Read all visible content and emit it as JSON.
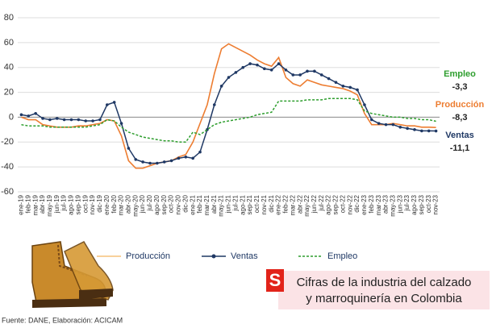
{
  "chart_data": {
    "type": "line",
    "categories": [
      "ene-19",
      "feb-19",
      "mar-19",
      "abr-19",
      "may-19",
      "jun-19",
      "jul-19",
      "ago-19",
      "sep-19",
      "oct-19",
      "nov-19",
      "dic-19",
      "ene-20",
      "feb-20",
      "mar-20",
      "abr-20",
      "may-20",
      "jun-20",
      "jul-20",
      "ago-20",
      "sep-20",
      "oct-20",
      "nov-20",
      "dic-20",
      "ene-21",
      "feb-21",
      "mar-21",
      "abr-21",
      "may-21",
      "jun-21",
      "jul-21",
      "ago-21",
      "sep-21",
      "oct-21",
      "nov-21",
      "dic-21",
      "ene-22",
      "feb-22",
      "mar-22",
      "abr-22",
      "may-22",
      "jun-22",
      "jul-22",
      "ago-22",
      "sep-22",
      "oct-22",
      "nov-22",
      "dic-22",
      "ene-23",
      "feb-23",
      "mar-23",
      "abr-23",
      "may-23",
      "jun-23",
      "jul-23",
      "ago-23",
      "sep-23",
      "oct-23",
      "nov-23"
    ],
    "series": [
      {
        "name": "Producción",
        "color": "#ed7d31",
        "style": "solid",
        "values": [
          0,
          -2,
          -2,
          -6,
          -7,
          -8,
          -8,
          -8,
          -7,
          -7,
          -6,
          -5,
          -2,
          -3,
          -15,
          -35,
          -41,
          -41,
          -39,
          -37,
          -36,
          -35,
          -32,
          -30,
          -20,
          -5,
          10,
          35,
          55,
          59,
          56,
          53,
          50,
          46,
          43,
          41,
          48,
          32,
          27,
          25,
          30,
          28,
          26,
          25,
          24,
          23,
          21,
          18,
          3,
          -6,
          -6,
          -6,
          -5,
          -6,
          -7,
          -7,
          -8,
          -8,
          -8.3
        ]
      },
      {
        "name": "Ventas",
        "color": "#1f3864",
        "style": "markers",
        "values": [
          2,
          1,
          3,
          -1,
          -2,
          -1,
          -2,
          -2,
          -2,
          -3,
          -3,
          -2,
          10,
          12,
          -5,
          -25,
          -34,
          -36,
          -37,
          -37,
          -36,
          -35,
          -33,
          -32,
          -33,
          -28,
          -10,
          10,
          25,
          32,
          36,
          40,
          43,
          42,
          39,
          38,
          43,
          38,
          34,
          34,
          37,
          37,
          34,
          31,
          28,
          25,
          24,
          22,
          10,
          -2,
          -5,
          -6,
          -6,
          -8,
          -9,
          -10,
          -11,
          -11,
          -11.1
        ]
      },
      {
        "name": "Empleo",
        "color": "#2e9e2e",
        "style": "dashed",
        "values": [
          -6,
          -7,
          -7,
          -7,
          -8,
          -8,
          -8,
          -8,
          -8,
          -8,
          -7,
          -6,
          -2,
          -3,
          -8,
          -12,
          -14,
          -16,
          -17,
          -18,
          -19,
          -19,
          -20,
          -20,
          -12,
          -14,
          -10,
          -6,
          -4,
          -3,
          -2,
          -1,
          0,
          2,
          3,
          4,
          13,
          13,
          13,
          13,
          14,
          14,
          14,
          15,
          15,
          15,
          15,
          14,
          5,
          3,
          2,
          1,
          0,
          0,
          -1,
          -1,
          -2,
          -2,
          -3.3
        ]
      }
    ],
    "ylim": [
      -60,
      80
    ],
    "yticks": [
      -60,
      -40,
      -20,
      0,
      20,
      40,
      60,
      80
    ],
    "grid": true,
    "annotations": [
      {
        "name": "Empleo",
        "text": "-3,3",
        "color": "#2e9e2e"
      },
      {
        "name": "Producción",
        "text": "-8,3",
        "color": "#ed7d31"
      },
      {
        "name": "Ventas",
        "text": "-11,1",
        "color": "#1f3864"
      }
    ]
  },
  "banner": {
    "logo": "S",
    "title_line1": "Cifras de la industria del calzado",
    "title_line2": "y marroquinería en Colombia"
  },
  "source": "Fuente: DANE, Elaboración: ACICAM"
}
